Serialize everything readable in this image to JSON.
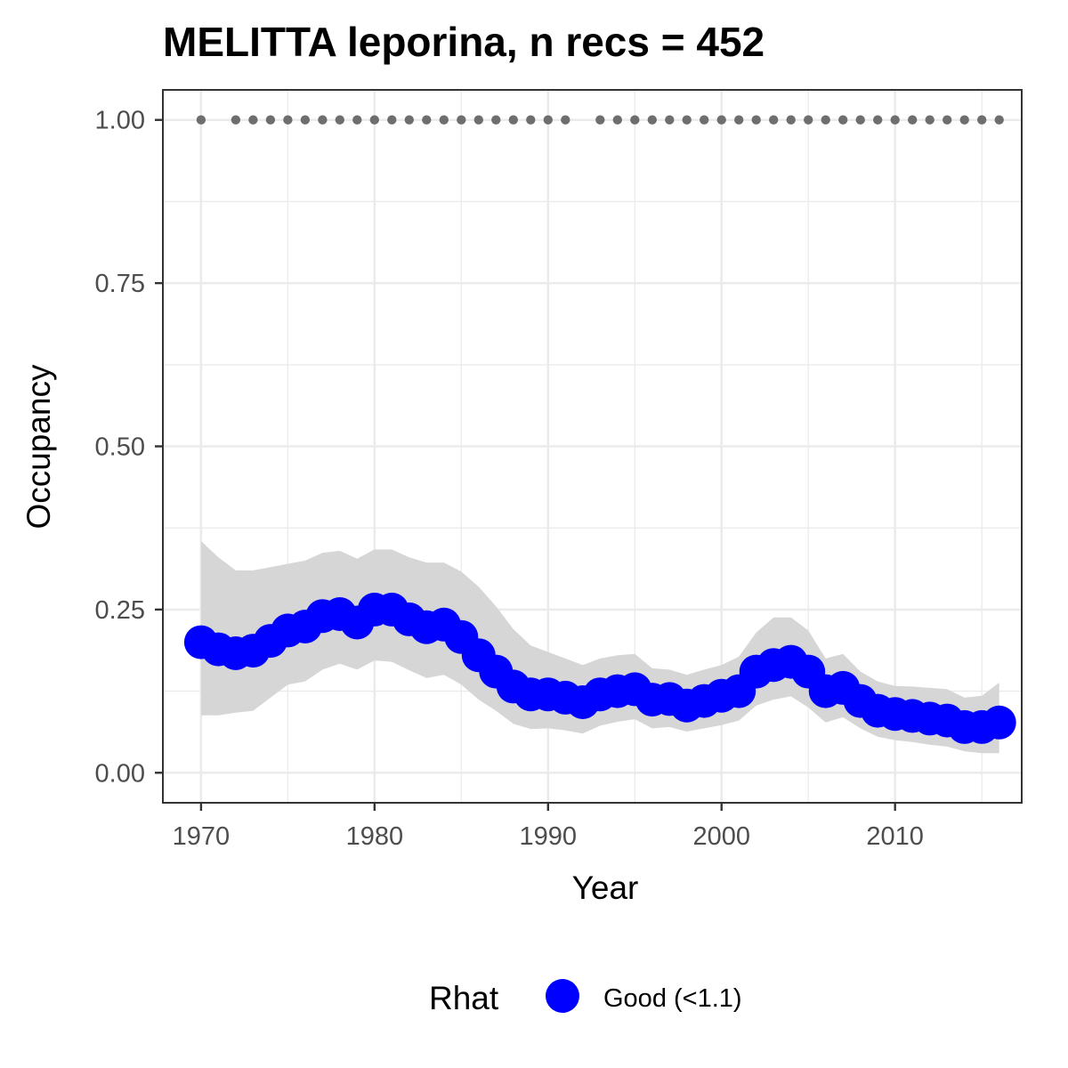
{
  "chart_data": {
    "type": "line",
    "title": "MELITTA leporina, n recs = 452",
    "xlabel": "Year",
    "ylabel": "Occupancy",
    "xlim": [
      1967.8,
      2017.3
    ],
    "ylim": [
      -0.046,
      1.046
    ],
    "x_ticks": [
      1970,
      1980,
      1990,
      2000,
      2010
    ],
    "y_ticks": [
      0.0,
      0.25,
      0.5,
      0.75,
      1.0
    ],
    "x_tick_labels": [
      "1970",
      "1980",
      "1990",
      "2000",
      "2010"
    ],
    "y_tick_labels": [
      "0.00",
      "0.25",
      "0.50",
      "0.75",
      "1.00"
    ],
    "grid": true,
    "legend": {
      "title": "Rhat",
      "position": "bottom",
      "entries": [
        {
          "label": "Good (<1.1)",
          "color": "#0000ff"
        }
      ]
    },
    "colors": {
      "series": "#0000ff",
      "ribbon": "#d6d6d6",
      "record_dots": "#6e6e6e",
      "grid": "#ebebeb",
      "panel_border": "#333333"
    },
    "series": [
      {
        "name": "Good (<1.1)",
        "x": [
          1970,
          1971,
          1972,
          1973,
          1974,
          1975,
          1976,
          1977,
          1978,
          1979,
          1980,
          1981,
          1982,
          1983,
          1984,
          1985,
          1986,
          1987,
          1988,
          1989,
          1990,
          1991,
          1992,
          1993,
          1994,
          1995,
          1996,
          1997,
          1998,
          1999,
          2000,
          2001,
          2002,
          2003,
          2004,
          2005,
          2006,
          2007,
          2008,
          2009,
          2010,
          2011,
          2012,
          2013,
          2014,
          2015,
          2016
        ],
        "y": [
          0.2,
          0.189,
          0.183,
          0.187,
          0.202,
          0.218,
          0.224,
          0.24,
          0.243,
          0.23,
          0.25,
          0.25,
          0.235,
          0.223,
          0.227,
          0.208,
          0.18,
          0.155,
          0.132,
          0.12,
          0.12,
          0.115,
          0.108,
          0.12,
          0.125,
          0.128,
          0.112,
          0.113,
          0.103,
          0.11,
          0.118,
          0.125,
          0.155,
          0.165,
          0.17,
          0.155,
          0.125,
          0.13,
          0.11,
          0.095,
          0.09,
          0.087,
          0.083,
          0.08,
          0.07,
          0.07,
          0.077
        ],
        "lower": [
          0.088,
          0.088,
          0.092,
          0.095,
          0.115,
          0.135,
          0.14,
          0.158,
          0.167,
          0.158,
          0.172,
          0.17,
          0.157,
          0.145,
          0.15,
          0.135,
          0.112,
          0.095,
          0.075,
          0.067,
          0.068,
          0.065,
          0.06,
          0.072,
          0.078,
          0.082,
          0.068,
          0.07,
          0.063,
          0.068,
          0.073,
          0.08,
          0.103,
          0.112,
          0.117,
          0.1,
          0.077,
          0.085,
          0.068,
          0.055,
          0.05,
          0.047,
          0.043,
          0.04,
          0.033,
          0.03,
          0.03
        ],
        "upper": [
          0.355,
          0.33,
          0.31,
          0.31,
          0.315,
          0.32,
          0.325,
          0.337,
          0.34,
          0.328,
          0.342,
          0.342,
          0.33,
          0.322,
          0.322,
          0.308,
          0.285,
          0.255,
          0.22,
          0.195,
          0.185,
          0.175,
          0.165,
          0.175,
          0.18,
          0.182,
          0.16,
          0.158,
          0.15,
          0.158,
          0.165,
          0.178,
          0.215,
          0.238,
          0.238,
          0.218,
          0.175,
          0.182,
          0.155,
          0.14,
          0.133,
          0.132,
          0.13,
          0.128,
          0.115,
          0.118,
          0.138
        ]
      }
    ],
    "record_years": [
      1970,
      1972,
      1973,
      1974,
      1975,
      1976,
      1977,
      1978,
      1979,
      1980,
      1981,
      1982,
      1983,
      1984,
      1985,
      1986,
      1987,
      1988,
      1989,
      1990,
      1991,
      1993,
      1994,
      1995,
      1996,
      1997,
      1998,
      1999,
      2000,
      2001,
      2002,
      2003,
      2004,
      2005,
      2006,
      2007,
      2008,
      2009,
      2010,
      2011,
      2012,
      2013,
      2014,
      2015,
      2016
    ],
    "record_level": 1.0
  }
}
